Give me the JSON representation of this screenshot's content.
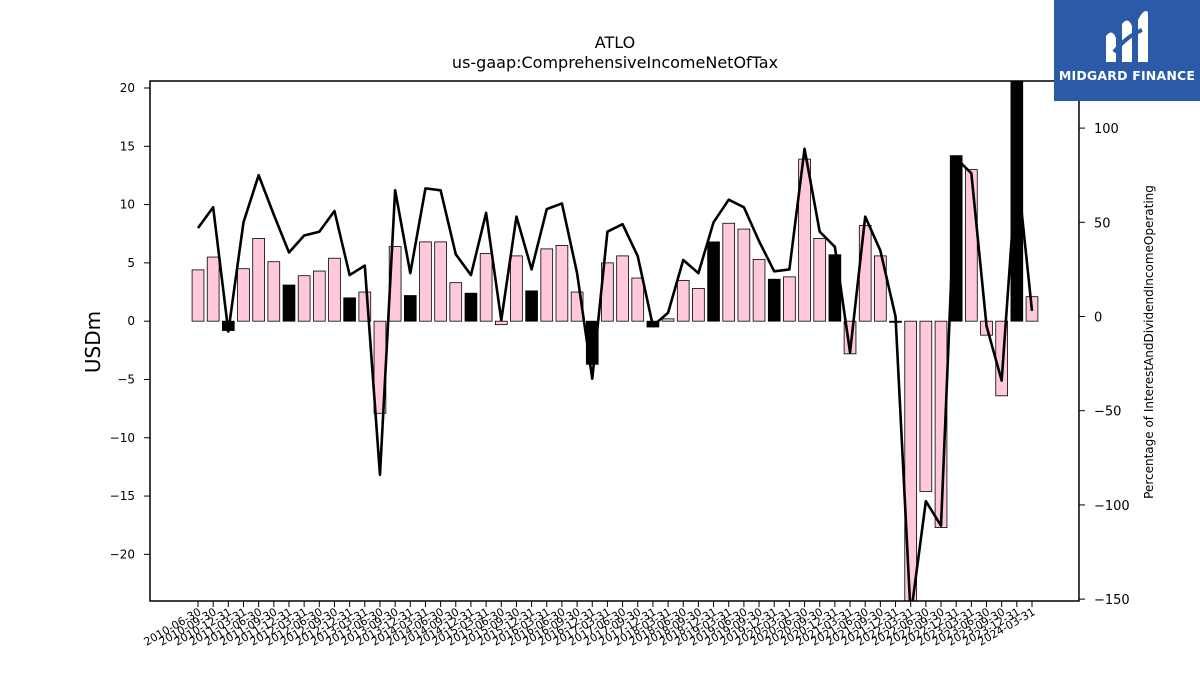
{
  "chart_data": {
    "type": "bar+line",
    "title": "ATLO",
    "subtitle": "us-gaap:ComprehensiveIncomeNetOfTax",
    "ylabel": "USDm",
    "y2label": "Percentage of InterestAndDividendIncomeOperating",
    "ylim": [
      -24,
      20.6
    ],
    "y2lim": [
      -151,
      125
    ],
    "yticks": [
      -20,
      -15,
      -10,
      -5,
      0,
      5,
      10,
      15,
      20
    ],
    "y2ticks": [
      -150,
      -100,
      -50,
      0,
      50,
      100
    ],
    "grid": false,
    "categories": [
      "2010-06-30",
      "2010-09-30",
      "2010-12-31",
      "2011-03-31",
      "2011-06-30",
      "2011-09-30",
      "2011-12-31",
      "2012-03-31",
      "2012-06-30",
      "2012-09-30",
      "2012-12-31",
      "2013-03-31",
      "2013-06-30",
      "2013-09-30",
      "2013-12-31",
      "2014-03-31",
      "2014-06-30",
      "2014-09-30",
      "2014-12-31",
      "2015-03-31",
      "2015-06-30",
      "2015-09-30",
      "2015-12-31",
      "2016-03-31",
      "2016-06-30",
      "2016-09-30",
      "2016-12-31",
      "2017-03-31",
      "2017-06-30",
      "2017-09-30",
      "2017-12-31",
      "2018-03-31",
      "2018-06-30",
      "2018-09-30",
      "2018-12-31",
      "2019-03-31",
      "2019-06-30",
      "2019-09-30",
      "2019-12-31",
      "2020-03-31",
      "2020-06-30",
      "2020-09-30",
      "2020-12-31",
      "2021-03-31",
      "2021-06-30",
      "2021-09-30",
      "2021-12-31",
      "2022-03-31",
      "2022-06-30",
      "2022-09-30",
      "2022-12-31",
      "2023-03-31",
      "2023-06-30",
      "2023-09-30",
      "2023-12-31",
      "2024-03-31"
    ],
    "series": [
      {
        "kind": "bar",
        "values": [
          4.4,
          5.5,
          -0.8,
          4.5,
          7.1,
          5.1,
          3.1,
          3.9,
          4.3,
          5.4,
          2.0,
          2.5,
          -7.9,
          6.4,
          2.2,
          6.8,
          6.8,
          3.3,
          2.4,
          5.8,
          -0.3,
          5.6,
          2.6,
          6.2,
          6.5,
          2.5,
          -3.7,
          5.0,
          5.6,
          3.7,
          -0.5,
          0.2,
          3.5,
          2.8,
          6.8,
          8.4,
          7.9,
          5.3,
          3.6,
          3.8,
          13.9,
          7.1,
          5.7,
          -2.8,
          8.2,
          5.6,
          -0.1,
          -24.0,
          -14.6,
          -17.7,
          14.2,
          13.0,
          -1.2,
          -6.4,
          20.6,
          2.1
        ],
        "highlight": [
          false,
          false,
          true,
          false,
          false,
          false,
          true,
          false,
          false,
          false,
          true,
          false,
          false,
          false,
          true,
          false,
          false,
          false,
          true,
          false,
          false,
          false,
          true,
          false,
          false,
          false,
          true,
          false,
          false,
          false,
          true,
          false,
          false,
          false,
          true,
          false,
          false,
          false,
          true,
          false,
          false,
          false,
          true,
          false,
          false,
          false,
          true,
          false,
          false,
          false,
          true,
          false,
          false,
          false,
          true,
          false
        ],
        "colors": {
          "normal": "#ffc8dd",
          "highlight": "#000000"
        }
      },
      {
        "kind": "line",
        "axis": "right",
        "values": [
          47,
          58,
          -8,
          50,
          75,
          54,
          34,
          43,
          45,
          56,
          22,
          27,
          -84,
          67,
          23,
          68,
          67,
          33,
          22,
          55,
          -2,
          53,
          25,
          57,
          60,
          23,
          -33,
          45,
          49,
          32,
          -5,
          2,
          30,
          23,
          50,
          62,
          58,
          40,
          24,
          25,
          89,
          45,
          37,
          -19,
          53,
          35,
          0,
          -159,
          -98,
          -111,
          84,
          76,
          -5,
          -34,
          80,
          3
        ],
        "color": "#000000"
      }
    ]
  },
  "logo": {
    "text": "MIDGARD FINANCE"
  }
}
